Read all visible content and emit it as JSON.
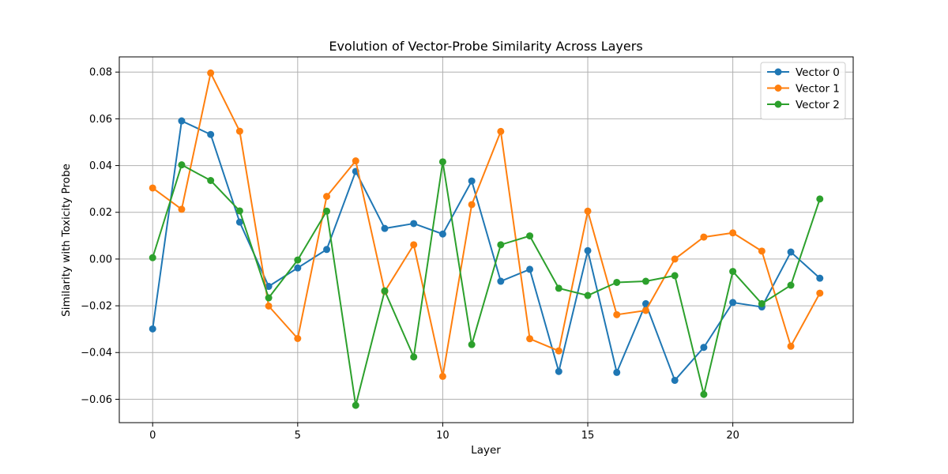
{
  "chart_data": {
    "type": "line",
    "title": "Evolution of Vector-Probe Similarity Across Layers",
    "xlabel": "Layer",
    "ylabel": "Similarity with Toxicity Probe",
    "xlim": [
      -1.15,
      24.15
    ],
    "ylim": [
      -0.07,
      0.0865
    ],
    "xticks": [
      0,
      5,
      10,
      15,
      20
    ],
    "xtick_labels": [
      "0",
      "5",
      "10",
      "15",
      "20"
    ],
    "yticks": [
      -0.06,
      -0.04,
      -0.02,
      0.0,
      0.02,
      0.04,
      0.06,
      0.08
    ],
    "ytick_labels": [
      "−0.06",
      "−0.04",
      "−0.02",
      "0.00",
      "0.02",
      "0.04",
      "0.06",
      "0.08"
    ],
    "grid": true,
    "legend_position": "top-right",
    "marker": "circle",
    "x": [
      0,
      1,
      2,
      3,
      4,
      5,
      6,
      7,
      8,
      9,
      10,
      11,
      12,
      13,
      14,
      15,
      16,
      17,
      18,
      19,
      20,
      21,
      22,
      23
    ],
    "series": [
      {
        "name": "Vector 0",
        "color": "#1f77b4",
        "values": [
          -0.0299,
          0.0591,
          0.0533,
          0.0158,
          -0.0117,
          -0.0038,
          0.0041,
          0.0375,
          0.0131,
          0.0152,
          0.0107,
          0.0334,
          -0.0095,
          -0.0044,
          -0.0481,
          0.0036,
          -0.0485,
          -0.0191,
          -0.0519,
          -0.0378,
          -0.0186,
          -0.0205,
          0.003,
          -0.0082
        ]
      },
      {
        "name": "Vector 1",
        "color": "#ff7f0e",
        "values": [
          0.0304,
          0.0213,
          0.0796,
          0.0547,
          -0.0201,
          -0.034,
          0.0268,
          0.042,
          -0.0139,
          0.0061,
          -0.0502,
          0.0233,
          0.0546,
          -0.0341,
          -0.0393,
          0.0205,
          -0.0238,
          -0.022,
          0.0,
          0.0094,
          0.0112,
          0.0034,
          -0.0373,
          -0.0146
        ]
      },
      {
        "name": "Vector 2",
        "color": "#2ca02c",
        "values": [
          0.0006,
          0.0403,
          0.0336,
          0.0206,
          -0.0166,
          -0.0004,
          0.0205,
          -0.0626,
          -0.0136,
          -0.0419,
          0.0416,
          -0.0366,
          0.0061,
          0.0099,
          -0.0125,
          -0.0156,
          -0.01,
          -0.0095,
          -0.0071,
          -0.0579,
          -0.0053,
          -0.0191,
          -0.0112,
          0.0257
        ]
      }
    ]
  }
}
